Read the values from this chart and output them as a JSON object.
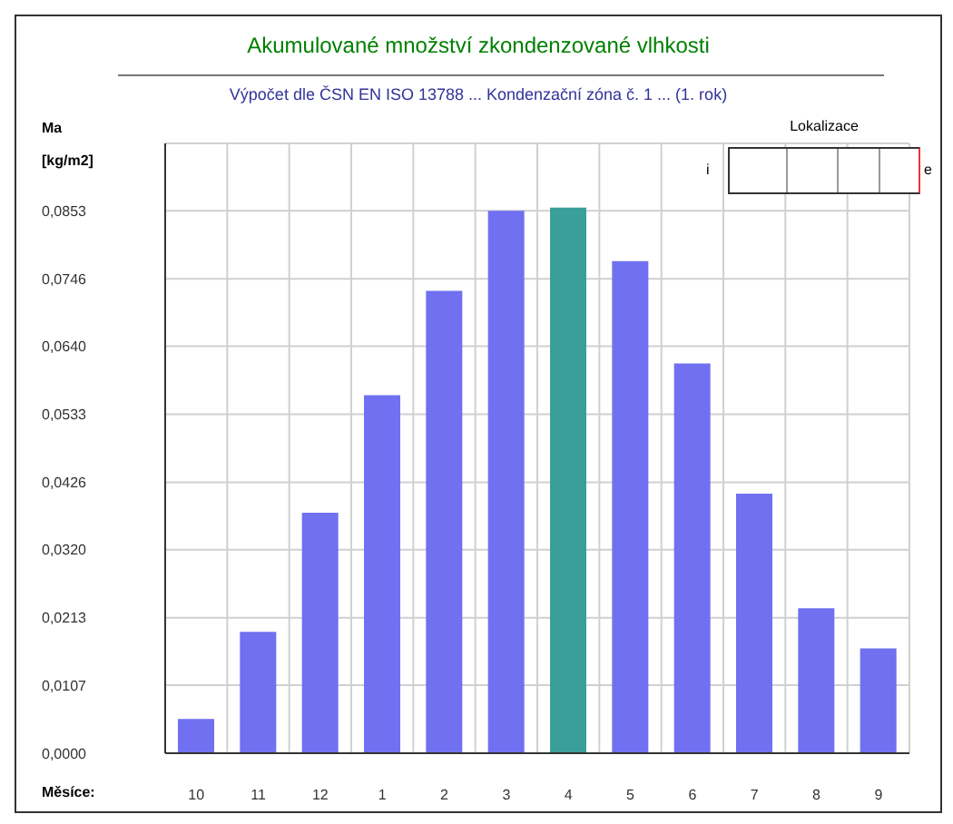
{
  "chart_data": {
    "type": "bar",
    "title": "Akumulované množství zkondenzované vlhkosti",
    "subtitle": "Výpočet dle ČSN EN ISO 13788 ... Kondenzační zóna č. 1 ... (1. rok)",
    "ylabel": "Ma\n[kg/m2]",
    "xlabel": "Měsíce:",
    "categories": [
      "10",
      "11",
      "12",
      "1",
      "2",
      "3",
      "4",
      "5",
      "6",
      "7",
      "8",
      "9"
    ],
    "values": [
      0.0054,
      0.0191,
      0.0378,
      0.0563,
      0.0727,
      0.0853,
      0.0858,
      0.0774,
      0.0613,
      0.0408,
      0.0228,
      0.0165
    ],
    "colors": [
      "#7070f0",
      "#7070f0",
      "#7070f0",
      "#7070f0",
      "#7070f0",
      "#7070f0",
      "#3a9f98",
      "#7070f0",
      "#7070f0",
      "#7070f0",
      "#7070f0",
      "#7070f0"
    ],
    "ylim": [
      0,
      0.0959
    ],
    "yticks": [
      {
        "value": 0,
        "label": "0,0000"
      },
      {
        "value": 0.0107,
        "label": "0,0107"
      },
      {
        "value": 0.0213,
        "label": "0,0213"
      },
      {
        "value": 0.032,
        "label": "0,0320"
      },
      {
        "value": 0.0426,
        "label": "0,0426"
      },
      {
        "value": 0.0533,
        "label": "0,0533"
      },
      {
        "value": 0.064,
        "label": "0,0640"
      },
      {
        "value": 0.0746,
        "label": "0,0746"
      },
      {
        "value": 0.0853,
        "label": "0,0853"
      }
    ],
    "grid": true,
    "annotations": [
      "Lokalizace",
      "i",
      "e"
    ]
  }
}
